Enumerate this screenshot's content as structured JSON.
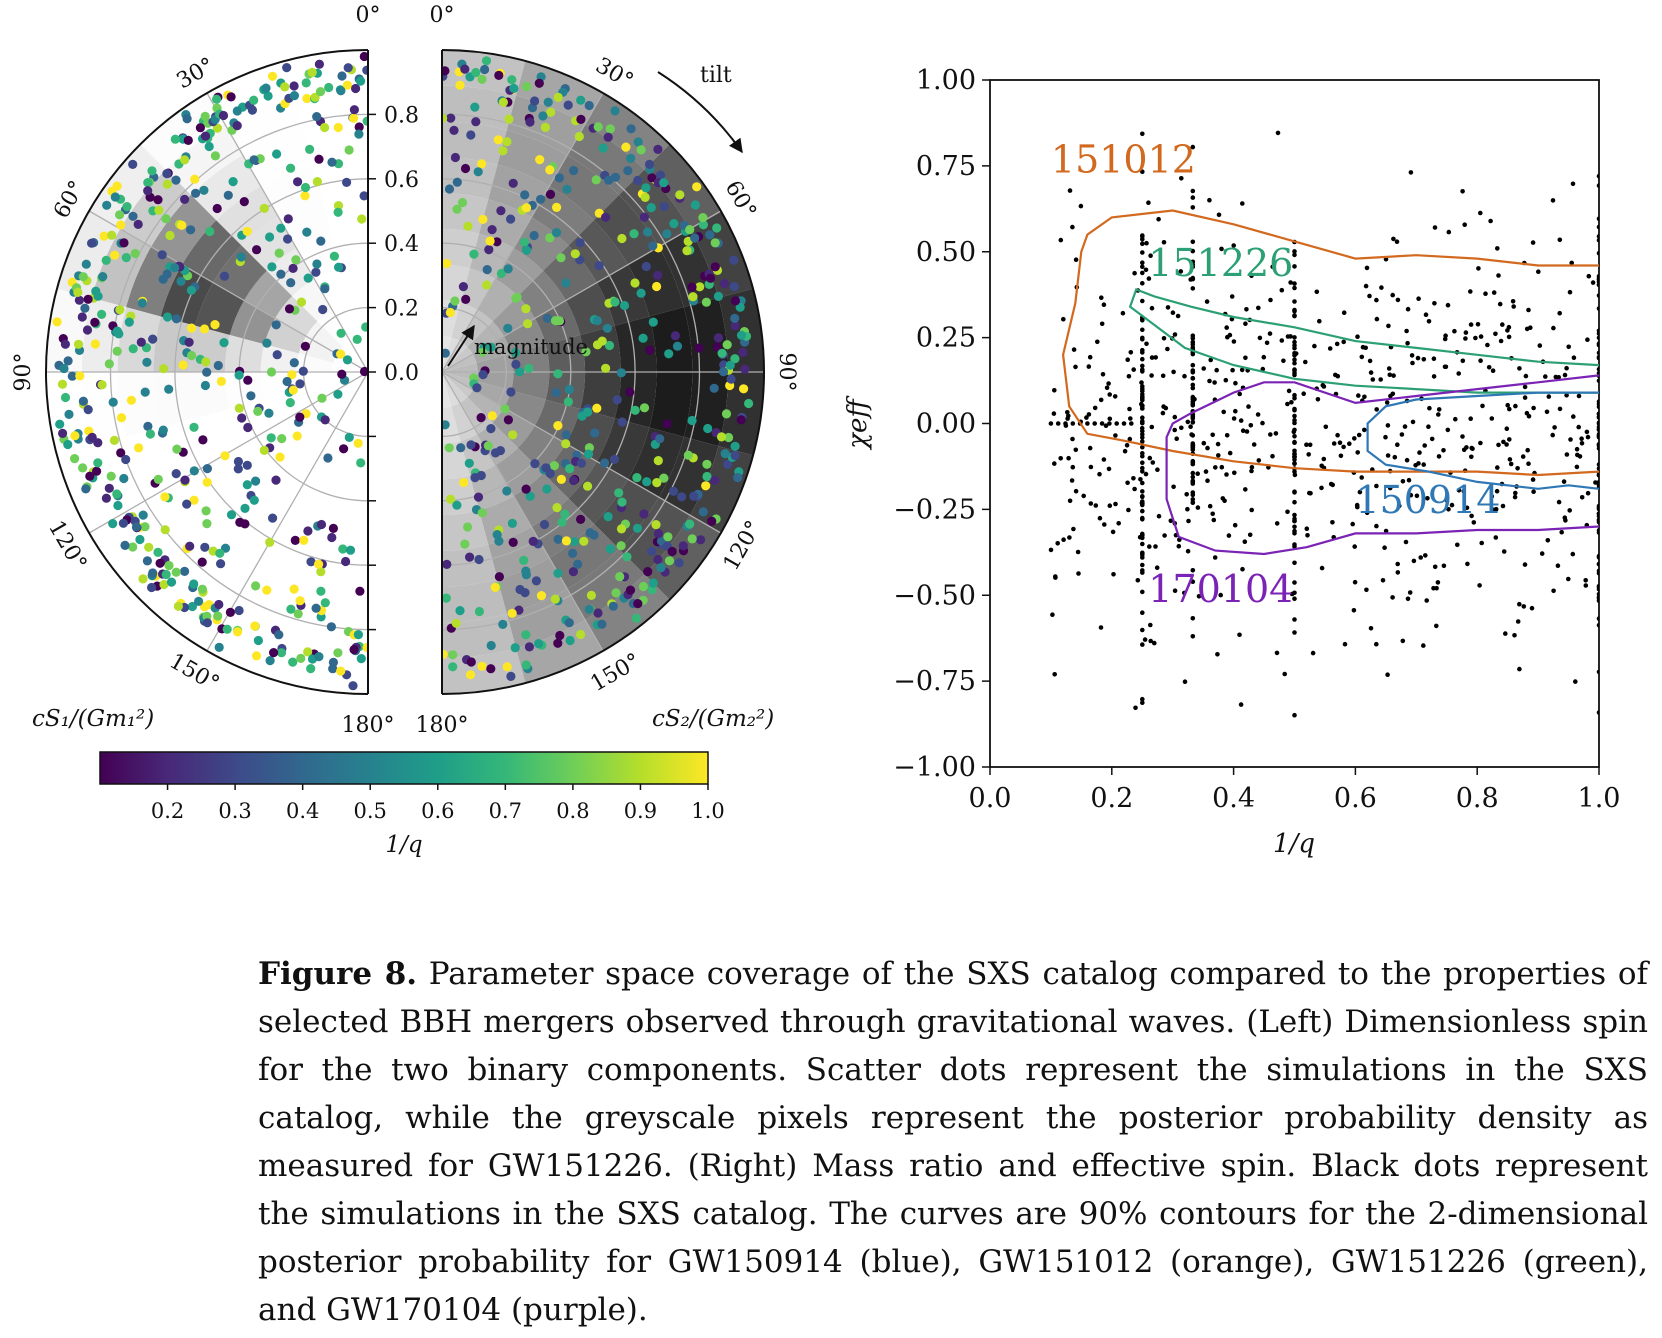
{
  "left_panel": {
    "tilt_ticks_s1": [
      "0°",
      "30°",
      "60°",
      "90°",
      "120°",
      "150°",
      "180°"
    ],
    "tilt_ticks_s2": [
      "0°",
      "30°",
      "60°",
      "90°",
      "120°",
      "150°",
      "180°"
    ],
    "magnitude_ticks": [
      "0.8",
      "0.6",
      "0.4",
      "0.2",
      "0.0"
    ],
    "label_s1": "cS₁/(Gm₁²)",
    "label_s2": "cS₂/(Gm₂²)",
    "annotation_tilt": "tilt",
    "annotation_magnitude": "magnitude",
    "colorbar": {
      "ticks": [
        "0.2",
        "0.3",
        "0.4",
        "0.5",
        "0.6",
        "0.7",
        "0.8",
        "0.9",
        "1.0"
      ],
      "label": "1/q",
      "range": [
        0.1,
        1.0
      ],
      "colormap": [
        "#440154",
        "#482878",
        "#3e4989",
        "#31688e",
        "#26828e",
        "#1f9e89",
        "#35b779",
        "#6ece58",
        "#b5de2b",
        "#fde725"
      ]
    }
  },
  "chart_data": {
    "type": "scatter",
    "xlabel": "1/q",
    "ylabel": "χeff",
    "xlim": [
      0.0,
      1.0
    ],
    "ylim": [
      -1.0,
      1.0
    ],
    "x_ticks": [
      "0.0",
      "0.2",
      "0.4",
      "0.6",
      "0.8",
      "1.0"
    ],
    "y_ticks": [
      "1.00",
      "0.75",
      "0.50",
      "0.25",
      "0.00",
      "−0.25",
      "−0.50",
      "−0.75",
      "−1.00"
    ],
    "contours": [
      {
        "name": "151012",
        "color": "#d2691e",
        "label_at": [
          0.1,
          0.73
        ],
        "points": [
          [
            1.0,
            0.46
          ],
          [
            0.9,
            0.46
          ],
          [
            0.8,
            0.48
          ],
          [
            0.7,
            0.49
          ],
          [
            0.6,
            0.48
          ],
          [
            0.5,
            0.53
          ],
          [
            0.4,
            0.58
          ],
          [
            0.3,
            0.62
          ],
          [
            0.2,
            0.6
          ],
          [
            0.16,
            0.55
          ],
          [
            0.15,
            0.5
          ],
          [
            0.14,
            0.35
          ],
          [
            0.12,
            0.2
          ],
          [
            0.13,
            0.05
          ],
          [
            0.16,
            -0.03
          ],
          [
            0.22,
            -0.05
          ],
          [
            0.3,
            -0.08
          ],
          [
            0.4,
            -0.11
          ],
          [
            0.5,
            -0.13
          ],
          [
            0.6,
            -0.14
          ],
          [
            0.7,
            -0.14
          ],
          [
            0.8,
            -0.14
          ],
          [
            0.9,
            -0.15
          ],
          [
            1.0,
            -0.14
          ]
        ]
      },
      {
        "name": "151226",
        "color": "#2ca074",
        "label_at": [
          0.26,
          0.43
        ],
        "points": [
          [
            1.0,
            0.17
          ],
          [
            0.9,
            0.18
          ],
          [
            0.8,
            0.2
          ],
          [
            0.7,
            0.22
          ],
          [
            0.6,
            0.24
          ],
          [
            0.5,
            0.28
          ],
          [
            0.4,
            0.31
          ],
          [
            0.33,
            0.34
          ],
          [
            0.27,
            0.37
          ],
          [
            0.24,
            0.39
          ],
          [
            0.23,
            0.34
          ],
          [
            0.26,
            0.3
          ],
          [
            0.32,
            0.22
          ],
          [
            0.4,
            0.17
          ],
          [
            0.5,
            0.13
          ],
          [
            0.6,
            0.11
          ],
          [
            0.7,
            0.1
          ],
          [
            0.8,
            0.09
          ],
          [
            0.9,
            0.09
          ],
          [
            1.0,
            0.09
          ]
        ]
      },
      {
        "name": "150914",
        "color": "#2f78b5",
        "label_at": [
          0.6,
          -0.26
        ],
        "points": [
          [
            1.0,
            0.09
          ],
          [
            0.9,
            0.09
          ],
          [
            0.8,
            0.08
          ],
          [
            0.7,
            0.07
          ],
          [
            0.65,
            0.05
          ],
          [
            0.62,
            0.0
          ],
          [
            0.62,
            -0.08
          ],
          [
            0.65,
            -0.12
          ],
          [
            0.72,
            -0.14
          ],
          [
            0.8,
            -0.17
          ],
          [
            0.9,
            -0.19
          ],
          [
            0.95,
            -0.18
          ],
          [
            1.0,
            -0.19
          ]
        ]
      },
      {
        "name": "170104",
        "color": "#7a23b5",
        "label_at": [
          0.26,
          -0.52
        ],
        "points": [
          [
            1.0,
            0.14
          ],
          [
            0.9,
            0.12
          ],
          [
            0.8,
            0.1
          ],
          [
            0.7,
            0.08
          ],
          [
            0.6,
            0.06
          ],
          [
            0.5,
            0.12
          ],
          [
            0.45,
            0.12
          ],
          [
            0.4,
            0.09
          ],
          [
            0.33,
            0.03
          ],
          [
            0.3,
            0.0
          ],
          [
            0.29,
            -0.04
          ],
          [
            0.29,
            -0.13
          ],
          [
            0.29,
            -0.22
          ],
          [
            0.31,
            -0.33
          ],
          [
            0.37,
            -0.37
          ],
          [
            0.45,
            -0.38
          ],
          [
            0.52,
            -0.36
          ],
          [
            0.6,
            -0.32
          ],
          [
            0.7,
            -0.32
          ],
          [
            0.8,
            -0.31
          ],
          [
            0.9,
            -0.31
          ],
          [
            1.0,
            -0.3
          ]
        ]
      }
    ]
  },
  "caption": {
    "figure_label": "Figure 8.",
    "text": "Parameter space coverage of the SXS catalog compared to the properties of selected BBH mergers observed through gravitational waves. (Left) Dimensionless spin for the two binary components. Scatter dots represent the simulations in the SXS catalog, while the greyscale pixels represent the posterior probability density as measured for GW151226. (Right) Mass ratio and effective spin. Black dots represent the simulations in the SXS catalog. The curves are 90% contours for the 2-dimensional posterior probability for GW150914 (blue), GW151012 (orange), GW151226 (green), and GW170104 (purple)."
  }
}
